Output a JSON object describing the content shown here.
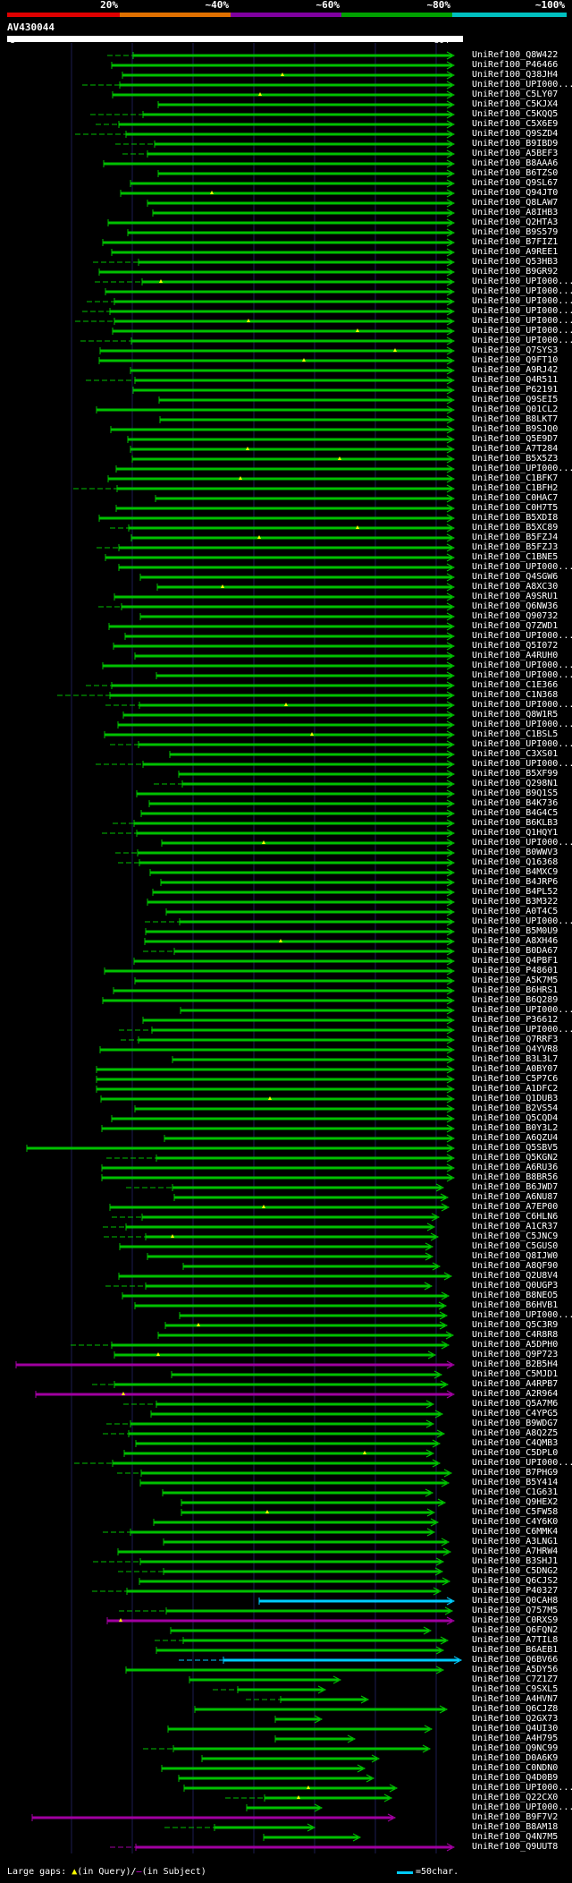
{
  "legend": [
    {
      "label": "20%",
      "color": "#e00000"
    },
    {
      "label": "~40%",
      "color": "#e07000"
    },
    {
      "label": "~60%",
      "color": "#8000a0"
    },
    {
      "label": "~80%",
      "color": "#00a000"
    },
    {
      "label": "~100%",
      "color": "#00c0c0"
    }
  ],
  "query": {
    "name": "AV430044",
    "start": "1",
    "end": "364"
  },
  "hits": [
    "UniRef100_Q8W422",
    "UniRef100_P46466",
    "UniRef100_Q38JH4",
    "UniRef100_UPI000...",
    "UniRef100_C5LY07",
    "UniRef100_C5KJX4",
    "UniRef100_C5KQQ5",
    "UniRef100_C5X6E9",
    "UniRef100_Q9SZD4",
    "UniRef100_B9IBD9",
    "UniRef100_A5BEF3",
    "UniRef100_B8AAA6",
    "UniRef100_B6TZS0",
    "UniRef100_Q9SL67",
    "UniRef100_Q94JT0",
    "UniRef100_Q8LAW7",
    "UniRef100_A8IHB3",
    "UniRef100_Q2HTA3",
    "UniRef100_B9S579",
    "UniRef100_B7FIZ1",
    "UniRef100_A9REE1",
    "UniRef100_Q53HB3",
    "UniRef100_B9GR92",
    "UniRef100_UPI000...",
    "UniRef100_UPI000...",
    "UniRef100_UPI000...",
    "UniRef100_UPI000...",
    "UniRef100_UPI000...",
    "UniRef100_UPI000...",
    "UniRef100_UPI000...",
    "UniRef100_Q7SYS3",
    "UniRef100_Q9FT10",
    "UniRef100_A9RJ42",
    "UniRef100_Q4R511",
    "UniRef100_P62191",
    "UniRef100_Q9SEI5",
    "UniRef100_Q01CL2",
    "UniRef100_B8LKT7",
    "UniRef100_B9SJQ0",
    "UniRef100_Q5E9D7",
    "UniRef100_A7T284",
    "UniRef100_B5X5Z3",
    "UniRef100_UPI000...",
    "UniRef100_C1BFK7",
    "UniRef100_C1BFH2",
    "UniRef100_C0HAC7",
    "UniRef100_C0H7T5",
    "UniRef100_B5XDI8",
    "UniRef100_B5XC89",
    "UniRef100_B5FZJ4",
    "UniRef100_B5FZJ3",
    "UniRef100_C1BNE5",
    "UniRef100_UPI000...",
    "UniRef100_Q4SGW6",
    "UniRef100_A8XC30",
    "UniRef100_A9SRU1",
    "UniRef100_Q6NW36",
    "UniRef100_Q90732",
    "UniRef100_Q7ZWD1",
    "UniRef100_UPI000...",
    "UniRef100_Q5I072",
    "UniRef100_A4RUH0",
    "UniRef100_UPI000...",
    "UniRef100_UPI000...",
    "UniRef100_C1E366",
    "UniRef100_C1N368",
    "UniRef100_UPI000...",
    "UniRef100_Q8W1R5",
    "UniRef100_UPI000...",
    "UniRef100_C1BSL5",
    "UniRef100_UPI000...",
    "UniRef100_C3XS01",
    "UniRef100_UPI000...",
    "UniRef100_B5XF99",
    "UniRef100_Q298N1",
    "UniRef100_B9Q1S5",
    "UniRef100_B4K736",
    "UniRef100_B4G4C5",
    "UniRef100_B6KLB3",
    "UniRef100_Q1HQY1",
    "UniRef100_UPI000...",
    "UniRef100_B0WWV3",
    "UniRef100_Q16368",
    "UniRef100_B4MXC9",
    "UniRef100_B4JRP6",
    "UniRef100_B4PL52",
    "UniRef100_B3M322",
    "UniRef100_A0T4C5",
    "UniRef100_UPI000...",
    "UniRef100_B5M0U9",
    "UniRef100_A8XH46",
    "UniRef100_B0DA67",
    "UniRef100_Q4PBF1",
    "UniRef100_P48601",
    "UniRef100_A5K7M5",
    "UniRef100_B6HRS1",
    "UniRef100_B6Q289",
    "UniRef100_UPI000...",
    "UniRef100_P36612",
    "UniRef100_UPI000...",
    "UniRef100_Q7RRF3",
    "UniRef100_Q4YVR8",
    "UniRef100_B3L3L7",
    "UniRef100_A0BY07",
    "UniRef100_C5P7C6",
    "UniRef100_A1DFC2",
    "UniRef100_Q1DUB3",
    "UniRef100_B2VS54",
    "UniRef100_Q5CQD4",
    "UniRef100_B0Y3L2",
    "UniRef100_A6QZU4",
    "UniRef100_Q5SBV5",
    "UniRef100_Q5KGN2",
    "UniRef100_A6RU36",
    "UniRef100_B8BR56",
    "UniRef100_B6JWD7",
    "UniRef100_A6NU87",
    "UniRef100_A7EP00",
    "UniRef100_C6HLN6",
    "UniRef100_A1CR37",
    "UniRef100_C5JNC9",
    "UniRef100_C5GUS0",
    "UniRef100_Q8IJW0",
    "UniRef100_A8QF90",
    "UniRef100_Q2U8V4",
    "UniRef100_Q0UGP3",
    "UniRef100_B8NEO5",
    "UniRef100_B6HVB1",
    "UniRef100_UPI000...",
    "UniRef100_Q5C3R9",
    "UniRef100_C4R8R8",
    "UniRef100_A5DPH0",
    "UniRef100_Q9P723",
    "UniRef100_B2B5H4",
    "UniRef100_C5MJD1",
    "UniRef100_A4RPB7",
    "UniRef100_A2R964",
    "UniRef100_Q5A7M6",
    "UniRef100_C4YPG5",
    "UniRef100_B9WDG7",
    "UniRef100_A8Q2Z5",
    "UniRef100_C4QMB3",
    "UniRef100_C5DPL0",
    "UniRef100_UPI000...",
    "UniRef100_B7PHG9",
    "UniRef100_B5Y414",
    "UniRef100_C1G631",
    "UniRef100_Q9HEX2",
    "UniRef100_C5FW58",
    "UniRef100_C4Y6K0",
    "UniRef100_C6MMK4",
    "UniRef100_A3LNG1",
    "UniRef100_A7HRW4",
    "UniRef100_B3SHJ1",
    "UniRef100_C5DNG2",
    "UniRef100_Q6CJS2",
    "UniRef100_P40327",
    "UniRef100_Q0CAH8",
    "UniRef100_Q757M5",
    "UniRef100_C0RXS9",
    "UniRef100_Q6FQN2",
    "UniRef100_A7TIL8",
    "UniRef100_B6AEB1",
    "UniRef100_Q6BV66",
    "UniRef100_A5DY56",
    "UniRef100_C7Z1Z7",
    "UniRef100_C9SXL5",
    "UniRef100_A4HVN7",
    "UniRef100_Q6CJZ8",
    "UniRef100_Q2GX73",
    "UniRef100_Q4UI30",
    "UniRef100_A4H795",
    "UniRef100_Q9NC99",
    "UniRef100_D0A6K9",
    "UniRef100_C0NDN0",
    "UniRef100_Q4D0B9",
    "UniRef100_UPI000...",
    "UniRef100_Q22CX0",
    "UniRef100_UPI000...",
    "UniRef100_B9F7V2",
    "UniRef100_B8AM18",
    "UniRef100_Q4N7M5",
    "UniRef100_Q9UUT8"
  ],
  "footer": {
    "gaps_label": "Large gaps:",
    "query_gap": "(in Query)/",
    "subject_gap": "(in Subject)",
    "scale_label": "=50char."
  },
  "colors": {
    "background": "#000000",
    "hit_green": "#00c000",
    "hit_magenta": "#a000a0",
    "hit_cyan": "#00ccff",
    "insert_marker": "#ffff00",
    "query_bar": "#ffffff"
  }
}
